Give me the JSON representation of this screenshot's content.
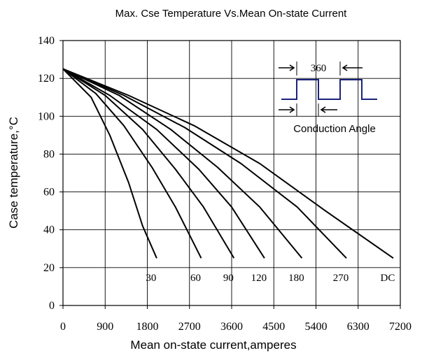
{
  "chart_data": {
    "type": "line",
    "title": "Max. Cse Temperature Vs.Mean On-state Current",
    "xlabel": "Mean on-state current,amperes",
    "ylabel": "Case temperature,°C",
    "xlim": [
      0,
      7200
    ],
    "ylim": [
      0,
      140
    ],
    "xticks": [
      0,
      900,
      1800,
      2700,
      3600,
      4500,
      5400,
      6300,
      7200
    ],
    "yticks": [
      0,
      20,
      40,
      60,
      80,
      100,
      120,
      140
    ],
    "grid": true,
    "series": [
      {
        "name": "30",
        "x": [
          0,
          600,
          1000,
          1400,
          1700,
          2000
        ],
        "y": [
          125,
          110,
          90,
          65,
          42,
          25
        ]
      },
      {
        "name": "60",
        "x": [
          0,
          700,
          1300,
          1900,
          2400,
          2950
        ],
        "y": [
          125,
          112,
          95,
          73,
          52,
          25
        ]
      },
      {
        "name": "90",
        "x": [
          0,
          900,
          1700,
          2400,
          3000,
          3650
        ],
        "y": [
          125,
          111,
          93,
          72,
          52,
          25
        ]
      },
      {
        "name": "120",
        "x": [
          0,
          1000,
          2000,
          2900,
          3600,
          4300
        ],
        "y": [
          125,
          111,
          93,
          72,
          52,
          25
        ]
      },
      {
        "name": "180",
        "x": [
          0,
          1200,
          2300,
          3300,
          4200,
          5100
        ],
        "y": [
          125,
          111,
          93,
          73,
          52,
          25
        ]
      },
      {
        "name": "270",
        "x": [
          0,
          1300,
          2600,
          3800,
          5000,
          6050
        ],
        "y": [
          125,
          111,
          94,
          75,
          52,
          25
        ]
      },
      {
        "name": "DC",
        "x": [
          0,
          1400,
          2800,
          4200,
          5600,
          7050
        ],
        "y": [
          125,
          111,
          95,
          75,
          50,
          25
        ]
      }
    ],
    "inset": {
      "label_360": "360",
      "caption": "Conduction Angle"
    }
  }
}
